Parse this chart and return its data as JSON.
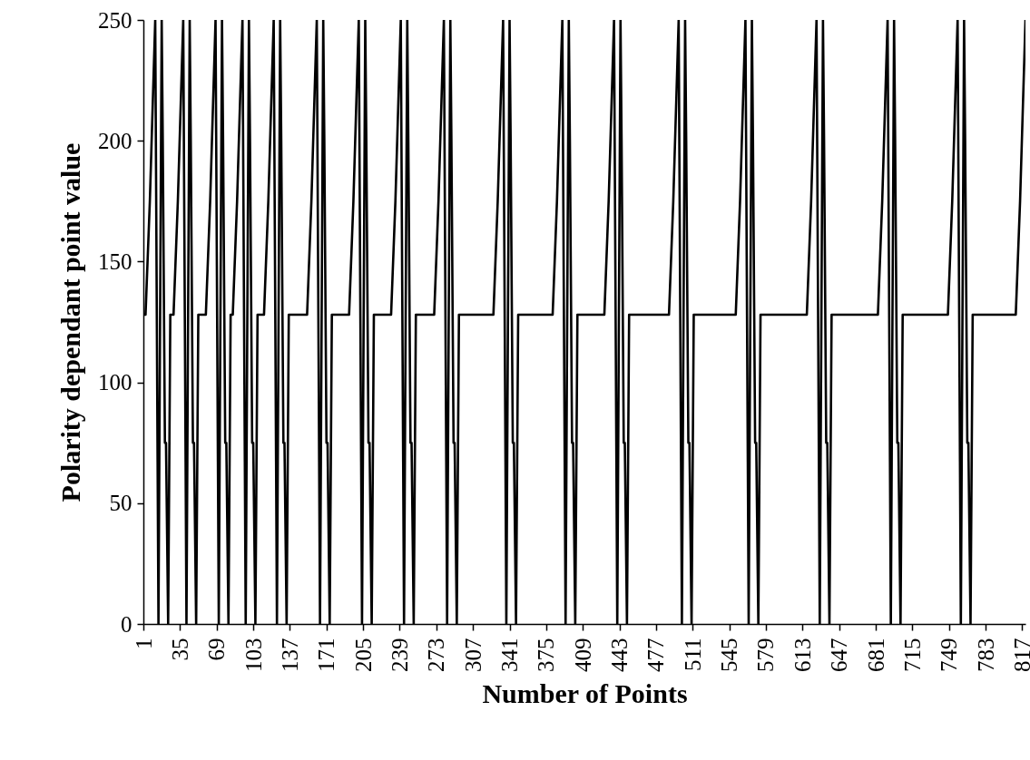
{
  "chart_data": {
    "type": "line",
    "xlabel": "Number of Points",
    "ylabel": "Polarity dependant point value",
    "color": "#000000",
    "x": [
      1,
      3,
      7,
      12,
      15,
      18,
      19,
      21,
      22,
      24,
      26,
      29,
      33,
      38,
      41,
      44,
      45,
      47,
      48,
      50,
      52,
      59,
      63,
      68,
      71,
      74,
      75,
      77,
      78,
      80,
      82,
      84,
      88,
      93,
      96,
      99,
      100,
      102,
      103,
      105,
      107,
      113,
      117,
      122,
      125,
      128,
      129,
      131,
      132,
      134,
      136,
      153,
      157,
      162,
      165,
      168,
      169,
      171,
      172,
      174,
      176,
      192,
      196,
      201,
      204,
      207,
      208,
      210,
      211,
      213,
      215,
      231,
      235,
      240,
      243,
      246,
      247,
      249,
      250,
      252,
      254,
      271,
      275,
      280,
      283,
      286,
      287,
      289,
      290,
      292,
      294,
      326,
      330,
      335,
      338,
      341,
      342,
      344,
      345,
      347,
      349,
      381,
      385,
      390,
      393,
      396,
      397,
      399,
      400,
      402,
      404,
      429,
      433,
      438,
      441,
      444,
      445,
      447,
      448,
      450,
      452,
      489,
      493,
      498,
      501,
      504,
      505,
      507,
      508,
      510,
      512,
      551,
      555,
      560,
      563,
      566,
      567,
      569,
      570,
      572,
      574,
      617,
      621,
      626,
      629,
      632,
      633,
      635,
      636,
      638,
      640,
      683,
      687,
      692,
      695,
      698,
      699,
      701,
      702,
      704,
      706,
      748,
      752,
      757,
      760,
      763,
      764,
      766,
      767,
      769,
      771,
      811,
      815,
      820
    ],
    "values": [
      128,
      128,
      175,
      250,
      0,
      250,
      200,
      75,
      75,
      0,
      128,
      128,
      175,
      250,
      0,
      250,
      200,
      75,
      75,
      0,
      128,
      128,
      175,
      250,
      0,
      250,
      200,
      75,
      75,
      0,
      128,
      128,
      175,
      250,
      0,
      250,
      200,
      75,
      75,
      0,
      128,
      128,
      175,
      250,
      0,
      250,
      200,
      75,
      75,
      0,
      128,
      128,
      175,
      250,
      0,
      250,
      200,
      75,
      75,
      0,
      128,
      128,
      175,
      250,
      0,
      250,
      200,
      75,
      75,
      0,
      128,
      128,
      175,
      250,
      0,
      250,
      200,
      75,
      75,
      0,
      128,
      128,
      175,
      250,
      0,
      250,
      200,
      75,
      75,
      0,
      128,
      128,
      175,
      250,
      0,
      250,
      200,
      75,
      75,
      0,
      128,
      128,
      175,
      250,
      0,
      250,
      200,
      75,
      75,
      0,
      128,
      128,
      175,
      250,
      0,
      250,
      200,
      75,
      75,
      0,
      128,
      128,
      175,
      250,
      0,
      250,
      200,
      75,
      75,
      0,
      128,
      128,
      175,
      250,
      0,
      250,
      200,
      75,
      75,
      0,
      128,
      128,
      175,
      250,
      0,
      250,
      200,
      75,
      75,
      0,
      128,
      128,
      175,
      250,
      0,
      250,
      200,
      75,
      75,
      0,
      128,
      128,
      175,
      250,
      0,
      250,
      200,
      75,
      75,
      0,
      128,
      128,
      175,
      250
    ],
    "xlim": [
      1,
      820
    ],
    "ylim": [
      0,
      250
    ],
    "xticks": [
      1,
      35,
      69,
      103,
      137,
      171,
      205,
      239,
      273,
      307,
      341,
      375,
      409,
      443,
      477,
      511,
      545,
      579,
      613,
      647,
      681,
      715,
      749,
      783,
      817
    ],
    "yticks": [
      0,
      50,
      100,
      150,
      200,
      250
    ]
  }
}
